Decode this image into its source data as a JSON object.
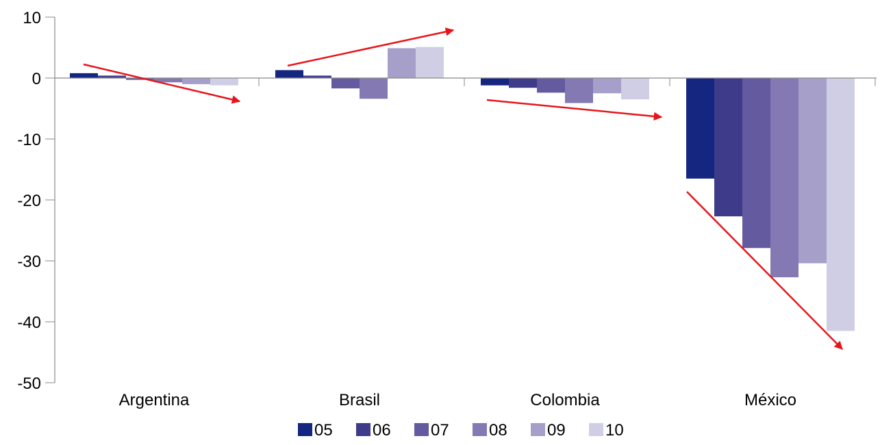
{
  "chart_data": {
    "type": "bar",
    "title": "",
    "xlabel": "",
    "ylabel": "",
    "categories": [
      "Argentina",
      "Brasil",
      "Colombia",
      "México"
    ],
    "series": [
      {
        "name": "05",
        "color": "#152680",
        "values": [
          0.8,
          1.3,
          -1.2,
          -16.5
        ]
      },
      {
        "name": "06",
        "color": "#3e3b8b",
        "values": [
          0.4,
          0.4,
          -1.6,
          -22.7
        ]
      },
      {
        "name": "07",
        "color": "#635a9f",
        "values": [
          -0.3,
          -1.7,
          -2.4,
          -27.9
        ]
      },
      {
        "name": "08",
        "color": "#8479b3",
        "values": [
          -0.7,
          -3.4,
          -4.1,
          -32.7
        ]
      },
      {
        "name": "09",
        "color": "#a59fca",
        "values": [
          -1.0,
          4.9,
          -2.5,
          -30.4
        ]
      },
      {
        "name": "10",
        "color": "#d0ceE5",
        "values": [
          -1.2,
          5.1,
          -3.5,
          -41.5
        ]
      }
    ],
    "yticks": [
      "10",
      "0",
      "-10",
      "-20",
      "-30",
      "-40",
      "-50"
    ],
    "ylim": [
      -50,
      10
    ],
    "grid": false,
    "legend_position": "bottom-center",
    "annotations": {
      "type": "trend-arrows",
      "color": "#e8141b",
      "count": 4
    }
  }
}
